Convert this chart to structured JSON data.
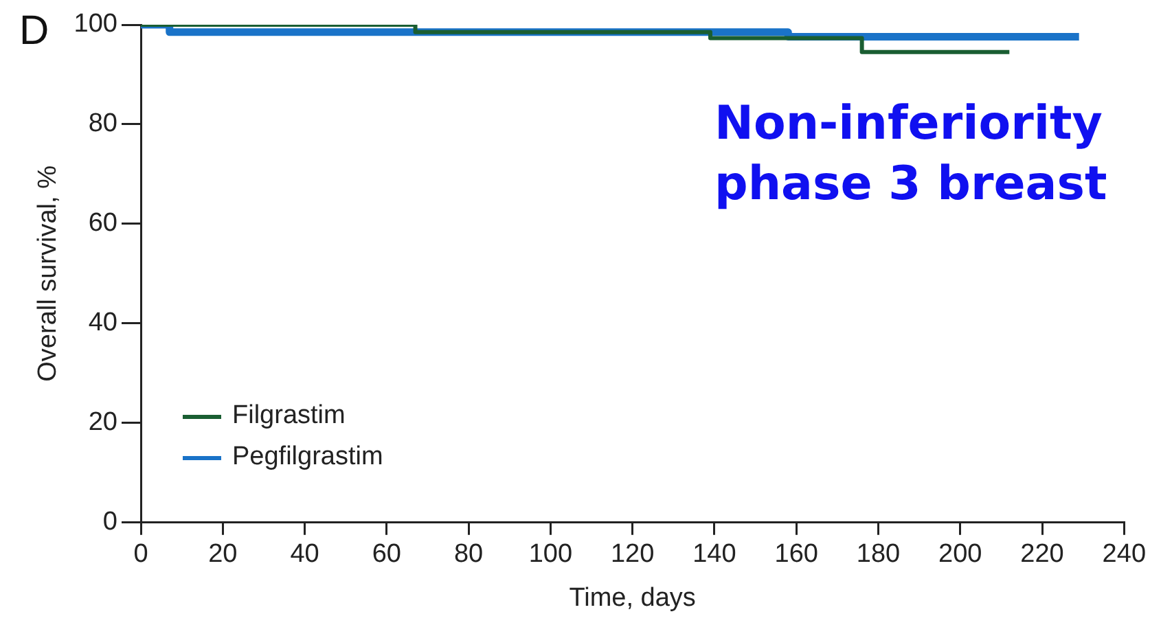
{
  "chart_data": {
    "type": "step",
    "xlabel": "Time, days",
    "ylabel": "Overall survival, %",
    "annotations": [
      "D",
      "Non-inferiority phase 3 breast"
    ],
    "xlim": [
      0,
      240
    ],
    "xticks": [
      0,
      20,
      40,
      60,
      80,
      100,
      120,
      140,
      160,
      180,
      200,
      220,
      240
    ],
    "ylim": [
      0,
      100
    ],
    "yticks": [
      0,
      20,
      40,
      60,
      80,
      100
    ],
    "grid": false,
    "legend": "bottom left",
    "marker": "none",
    "line_style": "solid",
    "series": [
      {
        "name": "Filgrastim",
        "color": "#1a5e32",
        "x": [
          0,
          67,
          139,
          176,
          212
        ],
        "values": [
          100,
          98.5,
          97.3,
          94.5,
          94.5
        ]
      },
      {
        "name": "Pegfilgrastim",
        "color": "#1a73c8",
        "x": [
          0,
          7,
          158,
          229
        ],
        "values": [
          100,
          98.5,
          97.6,
          97.6
        ]
      }
    ]
  }
}
